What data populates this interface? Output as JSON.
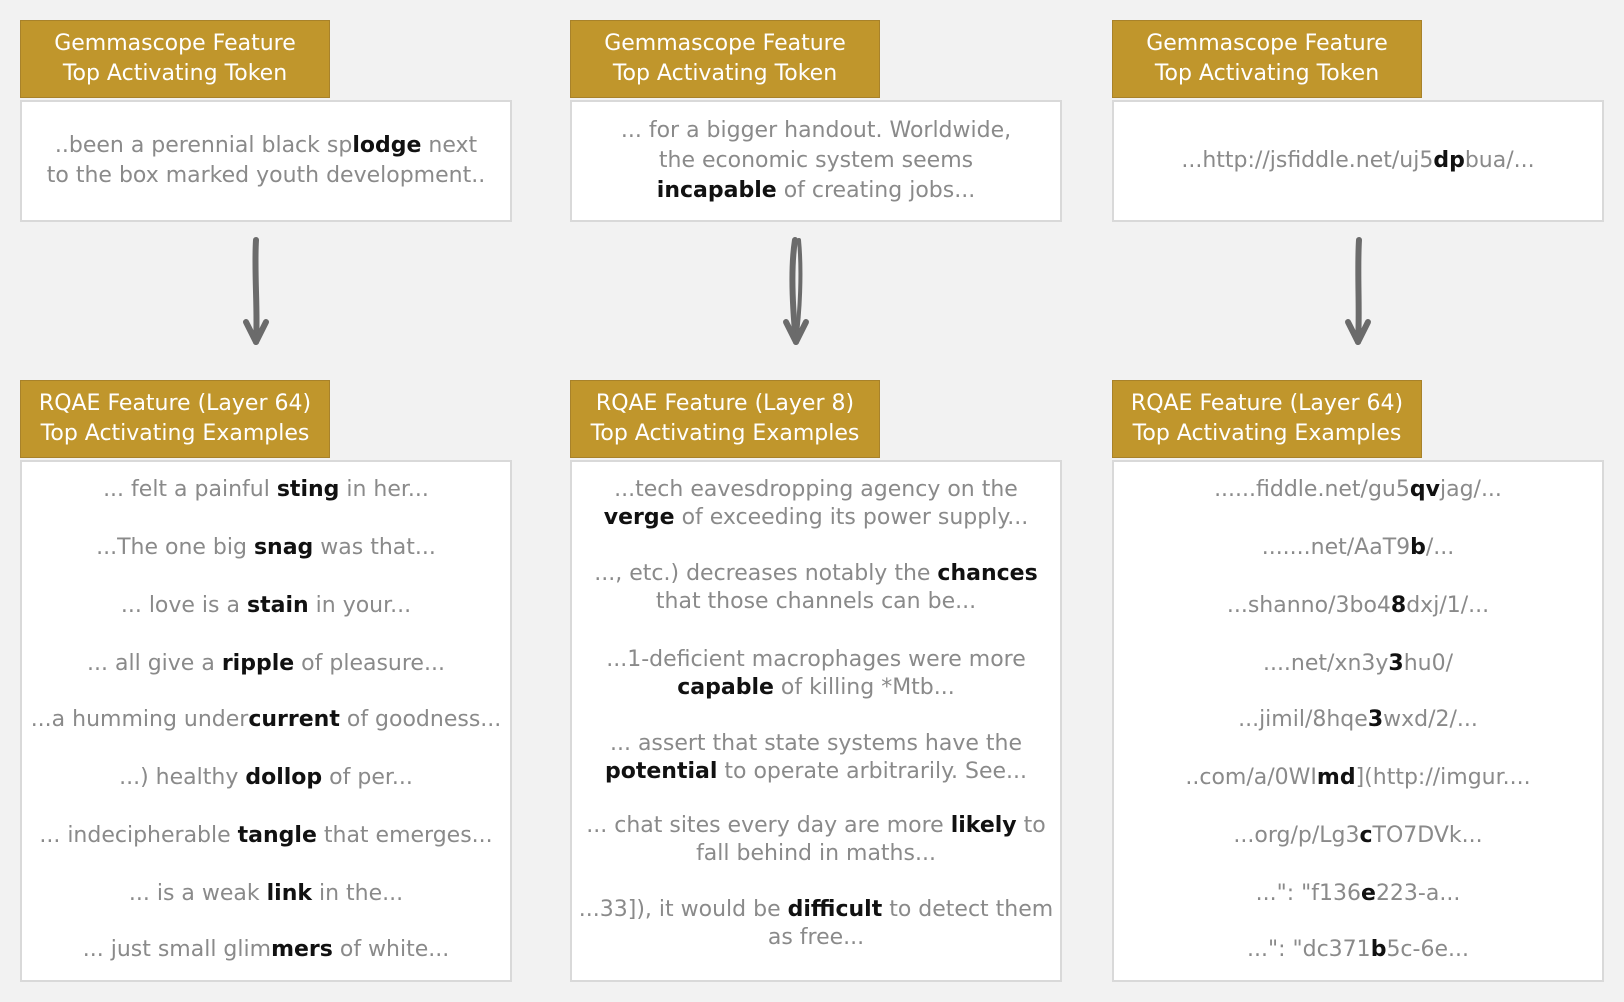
{
  "header_labels": {
    "gemmascope_line1": "Gemmascope Feature",
    "gemmascope_line2": "Top Activating Token",
    "rqae_line2": "Top Activating Examples"
  },
  "columns": [
    {
      "rqae_line1": "RQAE Feature (Layer 64)",
      "top_token": {
        "pre": "..been a perennial black sp",
        "bold": "lodge",
        "post": " next to the box marked youth development.."
      },
      "examples": [
        {
          "pre": "... felt a painful ",
          "bold": "sting",
          "post": " in her..."
        },
        {
          "pre": "...The one big ",
          "bold": "snag",
          "post": " was that..."
        },
        {
          "pre": "... love is a ",
          "bold": "stain",
          "post": " in your..."
        },
        {
          "pre": "... all give a ",
          "bold": "ripple",
          "post": " of pleasure..."
        },
        {
          "pre": "...a humming under",
          "bold": "current",
          "post": " of goodness..."
        },
        {
          "pre": "...) healthy ",
          "bold": "dollop",
          "post": " of per..."
        },
        {
          "pre": "... indecipherable ",
          "bold": "tangle",
          "post": " that emerges..."
        },
        {
          "pre": "... is a weak ",
          "bold": "link",
          "post": " in the..."
        },
        {
          "pre": "... just small glim",
          "bold": "mers",
          "post": " of white..."
        }
      ]
    },
    {
      "rqae_line1": "RQAE Feature (Layer 8)",
      "top_token": {
        "pre": "... for a bigger handout. Worldwide, the economic system seems ",
        "bold": "incapable",
        "post": " of creating jobs..."
      },
      "examples": [
        {
          "pre": "...tech eavesdropping agency on the ",
          "bold": "verge",
          "post": " of exceeding its power supply..."
        },
        {
          "pre": "..., etc.) decreases notably the ",
          "bold": "chances",
          "post": " that those channels can be..."
        },
        {
          "pre": "...1-deficient macrophages were more ",
          "bold": "capable",
          "post": " of killing *Mtb..."
        },
        {
          "pre": "... assert that state systems have the ",
          "bold": "potential",
          "post": " to operate arbitrarily. See..."
        },
        {
          "pre": "... chat sites every day are more ",
          "bold": "likely",
          "post": " to fall behind in maths..."
        },
        {
          "pre": "...33]), it would be ",
          "bold": "difficult",
          "post": " to detect them as free..."
        }
      ]
    },
    {
      "rqae_line1": "RQAE Feature (Layer 64)",
      "top_token": {
        "pre": "...http://jsfiddle.net/uj5",
        "bold": "dp",
        "post": "bua/..."
      },
      "examples": [
        {
          "pre": "......fiddle.net/gu5",
          "bold": "qv",
          "post": "jag/..."
        },
        {
          "pre": ".......net/AaT9",
          "bold": "b",
          "post": "/..."
        },
        {
          "pre": "...shanno/3bo4",
          "bold": "8",
          "post": "dxj/1/..."
        },
        {
          "pre": "....net/xn3y",
          "bold": "3",
          "post": "hu0/"
        },
        {
          "pre": "...jimil/8hqe",
          "bold": "3",
          "post": "wxd/2/..."
        },
        {
          "pre": "..com/a/0WI",
          "bold": "md",
          "post": "](http://imgur...."
        },
        {
          "pre": "...org/p/Lg3",
          "bold": "c",
          "post": "TO7DVk..."
        },
        {
          "pre": "...\": \"f136",
          "bold": "e",
          "post": "223-a..."
        },
        {
          "pre": "...\": \"dc371",
          "bold": "b",
          "post": "5c-6e..."
        }
      ]
    }
  ],
  "colors": {
    "header_bg": "#c0962c",
    "header_text": "#ffffff",
    "muted_text": "#8a8a8a",
    "highlight_text": "#111111",
    "arrow": "#6b6b6b"
  }
}
